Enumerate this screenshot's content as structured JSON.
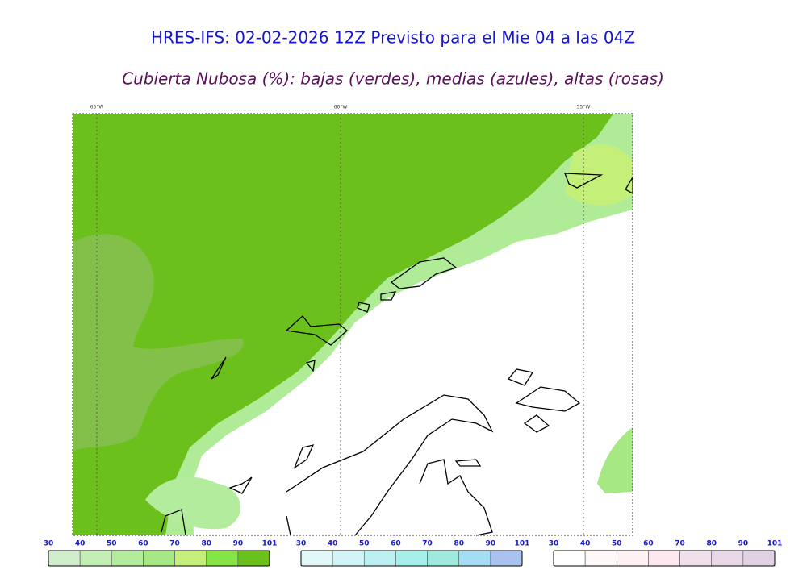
{
  "header": {
    "title": "HRES-IFS: 02-02-2026 12Z Previsto para el Mie 04 a las 04Z",
    "subtitle": "Cubierta Nubosa (%): bajas (verdes), medias (azules), altas (rosas)"
  },
  "map": {
    "lon_labels": [
      "65°W",
      "60°W",
      "55°W"
    ]
  },
  "legends": [
    {
      "labels": [
        30,
        40,
        50,
        60,
        70,
        80,
        90,
        101
      ],
      "colors": [
        "#d2ecce",
        "#c3efb7",
        "#b2ec9c",
        "#a6e884",
        "#c4f07a",
        "#86e446",
        "#6cc01c"
      ]
    },
    {
      "labels": [
        30,
        40,
        50,
        60,
        70,
        80,
        90,
        101
      ],
      "colors": [
        "#e2f8f8",
        "#d2f4f6",
        "#bcf0f2",
        "#a6f0ec",
        "#9eeadc",
        "#a6dcf4",
        "#aac2f0"
      ]
    },
    {
      "labels": [
        30,
        40,
        50,
        60,
        70,
        80,
        90,
        101
      ],
      "colors": [
        "#ffffff",
        "#fff8f8",
        "#fff0f2",
        "#fce8ee",
        "#f0e0ec",
        "#e8d8e8",
        "#e0d2e2"
      ]
    }
  ]
}
